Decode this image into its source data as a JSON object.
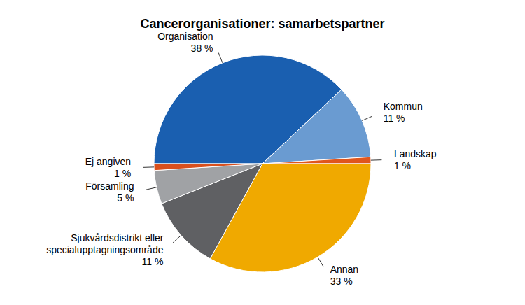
{
  "chart_data": {
    "type": "pie",
    "title": "Cancerorganisationer: samarbetspartner",
    "categories": [
      "Organisation",
      "Kommun",
      "Landskap",
      "Annan",
      "Sjukvårdsdistrikt eller specialupptagningsområde",
      "Församling",
      "Ej angiven"
    ],
    "values": [
      38,
      11,
      1,
      33,
      11,
      5,
      1
    ],
    "value_labels": [
      "38 %",
      "11 %",
      "1 %",
      "33 %",
      "11 %",
      "5 %",
      "1 %"
    ],
    "colors": [
      "#1a5fb0",
      "#6a9bd1",
      "#e0561d",
      "#f0a900",
      "#5f6063",
      "#a0a2a5",
      "#d9501d"
    ],
    "data_labels": true
  }
}
